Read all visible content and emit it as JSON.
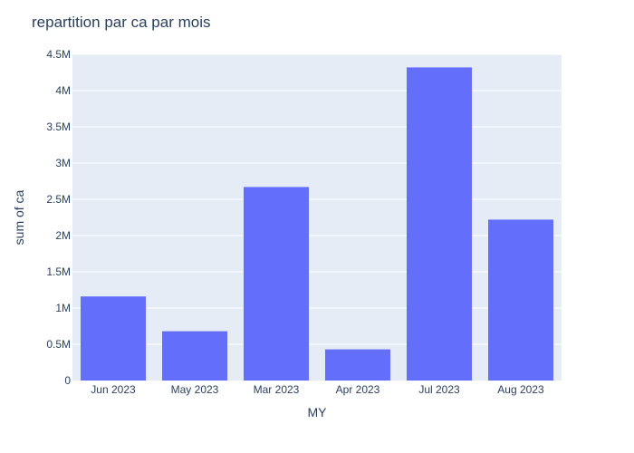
{
  "chart_data": {
    "type": "bar",
    "title": "repartition par ca par mois",
    "xlabel": "MY",
    "ylabel": "sum of ca",
    "categories": [
      "Jun 2023",
      "May 2023",
      "Mar 2023",
      "Apr 2023",
      "Jul 2023",
      "Aug 2023"
    ],
    "values": [
      1160000,
      680000,
      2670000,
      430000,
      4320000,
      2220000
    ],
    "ylim": [
      0,
      4500000
    ],
    "yticks": [
      0,
      500000,
      1000000,
      1500000,
      2000000,
      2500000,
      3000000,
      3500000,
      4000000,
      4500000
    ],
    "ytick_labels": [
      "0",
      "0.5M",
      "1M",
      "1.5M",
      "2M",
      "2.5M",
      "3M",
      "3.5M",
      "4M",
      "4.5M"
    ],
    "grid": true,
    "colors": {
      "bar": "#636efa",
      "plot_bg": "#e5ecf6",
      "grid": "#ffffff",
      "text": "#2a3f5f"
    }
  }
}
